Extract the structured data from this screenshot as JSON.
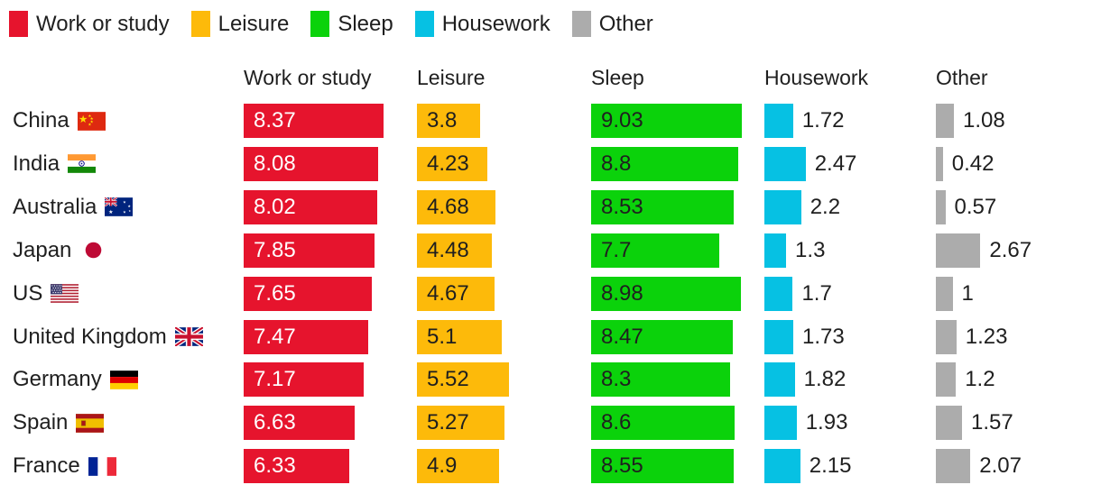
{
  "legend": {
    "items": [
      {
        "label": "Work or study",
        "color": "#e6142d"
      },
      {
        "label": "Leisure",
        "color": "#fdba0a"
      },
      {
        "label": "Sleep",
        "color": "#0bd20b"
      },
      {
        "label": "Housework",
        "color": "#06c1e3"
      },
      {
        "label": "Other",
        "color": "#acacac"
      }
    ]
  },
  "columns": {
    "headers": [
      "Work or study",
      "Leisure",
      "Sleep",
      "Housework",
      "Other"
    ]
  },
  "countries": [
    {
      "name": "China",
      "flag_icon": "flag-china-icon",
      "flag_code": "cn"
    },
    {
      "name": "India",
      "flag_icon": "flag-india-icon",
      "flag_code": "in"
    },
    {
      "name": "Australia",
      "flag_icon": "flag-australia-icon",
      "flag_code": "au"
    },
    {
      "name": "Japan",
      "flag_icon": "flag-japan-icon",
      "flag_code": "jp"
    },
    {
      "name": "US",
      "flag_icon": "flag-us-icon",
      "flag_code": "us"
    },
    {
      "name": "United Kingdom",
      "flag_icon": "flag-uk-icon",
      "flag_code": "gb"
    },
    {
      "name": "Germany",
      "flag_icon": "flag-germany-icon",
      "flag_code": "de"
    },
    {
      "name": "Spain",
      "flag_icon": "flag-spain-icon",
      "flag_code": "es"
    },
    {
      "name": "France",
      "flag_icon": "flag-france-icon",
      "flag_code": "fr"
    }
  ],
  "chart_data": {
    "type": "bar",
    "orientation": "horizontal",
    "unit": "hours per day",
    "title": "",
    "legend_position": "top",
    "grid": false,
    "value_labels_shown": true,
    "xlim_hours": [
      0,
      9.03
    ],
    "categories": [
      "China",
      "India",
      "Australia",
      "Japan",
      "US",
      "United Kingdom",
      "Germany",
      "Spain",
      "France"
    ],
    "series": [
      {
        "name": "Work or study",
        "color": "#e6142d",
        "label_inside_bar": true,
        "label_color": "#ffffff",
        "values": [
          8.37,
          8.08,
          8.02,
          7.85,
          7.65,
          7.47,
          7.17,
          6.63,
          6.33
        ]
      },
      {
        "name": "Leisure",
        "color": "#fdba0a",
        "label_inside_bar": true,
        "label_color": "#1f1f1f",
        "values": [
          3.8,
          4.23,
          4.68,
          4.48,
          4.67,
          5.1,
          5.52,
          5.27,
          4.9
        ]
      },
      {
        "name": "Sleep",
        "color": "#0bd20b",
        "label_inside_bar": true,
        "label_color": "#1f1f1f",
        "values": [
          9.03,
          8.8,
          8.53,
          7.7,
          8.98,
          8.47,
          8.3,
          8.6,
          8.55
        ]
      },
      {
        "name": "Housework",
        "color": "#06c1e3",
        "label_inside_bar": false,
        "label_color": "#1f1f1f",
        "values": [
          1.72,
          2.47,
          2.2,
          1.3,
          1.7,
          1.73,
          1.82,
          1.93,
          2.15
        ]
      },
      {
        "name": "Other",
        "color": "#acacac",
        "label_inside_bar": false,
        "label_color": "#1f1f1f",
        "values": [
          1.08,
          0.42,
          0.57,
          2.67,
          1,
          1.23,
          1.2,
          1.57,
          2.07
        ]
      }
    ]
  },
  "colors": {
    "background": "#ffffff",
    "text": "#1f1f1f",
    "value_text_light": "#ffffff"
  }
}
